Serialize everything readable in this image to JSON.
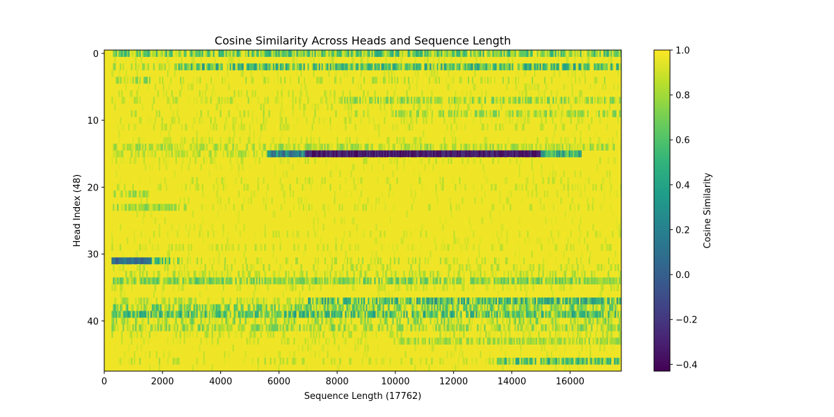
{
  "chart_data": {
    "type": "heatmap",
    "title": "Cosine Similarity Across Heads and Sequence Length",
    "xlabel": "Sequence Length (17762)",
    "ylabel": "Head Index (48)",
    "xlim": [
      0,
      17762
    ],
    "ylim": [
      47.5,
      -0.5
    ],
    "x_ticks": [
      0,
      2000,
      4000,
      6000,
      8000,
      10000,
      12000,
      14000,
      16000
    ],
    "x_tick_labels": [
      "0",
      "2000",
      "4000",
      "6000",
      "8000",
      "10000",
      "12000",
      "14000",
      "16000"
    ],
    "y_ticks": [
      0,
      10,
      20,
      30,
      40
    ],
    "y_tick_labels": [
      "0",
      "10",
      "20",
      "30",
      "40"
    ],
    "colormap": "viridis",
    "colorbar": {
      "label": "Cosine Similarity",
      "vmin": -0.43,
      "vmax": 1.0,
      "ticks": [
        1.0,
        0.8,
        0.6,
        0.4,
        0.2,
        0.0,
        -0.2,
        -0.4
      ],
      "tick_labels": [
        "1.0",
        "0.8",
        "0.6",
        "0.4",
        "0.2",
        "0.0",
        "−0.2",
        "−0.4"
      ]
    },
    "n_heads": 48,
    "seq_len": 17762,
    "default_value": 0.97,
    "leading_masked_columns": [
      0,
      250
    ],
    "rows": [
      {
        "head": 0,
        "segments": [
          {
            "x": [
              250,
              17762
            ],
            "mean": 0.68,
            "spread": 0.28,
            "density": 0.85
          }
        ]
      },
      {
        "head": 1,
        "segments": [
          {
            "x": [
              250,
              17762
            ],
            "mean": 0.92,
            "spread": 0.06,
            "density": 0.2
          }
        ]
      },
      {
        "head": 2,
        "segments": [
          {
            "x": [
              250,
              2400
            ],
            "mean": 0.85,
            "spread": 0.12,
            "density": 0.5
          },
          {
            "x": [
              2400,
              17762
            ],
            "mean": 0.6,
            "spread": 0.3,
            "density": 0.85
          }
        ]
      },
      {
        "head": 3,
        "segments": [
          {
            "x": [
              250,
              17762
            ],
            "mean": 0.92,
            "spread": 0.06,
            "density": 0.15
          }
        ]
      },
      {
        "head": 4,
        "segments": [
          {
            "x": [
              250,
              1600
            ],
            "mean": 0.78,
            "spread": 0.15,
            "density": 0.8
          },
          {
            "x": [
              1600,
              17762
            ],
            "mean": 0.88,
            "spread": 0.1,
            "density": 0.3
          }
        ]
      },
      {
        "head": 5,
        "segments": [
          {
            "x": [
              250,
              17762
            ],
            "mean": 0.92,
            "spread": 0.06,
            "density": 0.15
          }
        ]
      },
      {
        "head": 6,
        "segments": [
          {
            "x": [
              250,
              17762
            ],
            "mean": 0.9,
            "spread": 0.08,
            "density": 0.2
          }
        ]
      },
      {
        "head": 7,
        "segments": [
          {
            "x": [
              250,
              8000
            ],
            "mean": 0.88,
            "spread": 0.1,
            "density": 0.3
          },
          {
            "x": [
              8000,
              17762
            ],
            "mean": 0.78,
            "spread": 0.15,
            "density": 0.7
          }
        ]
      },
      {
        "head": 8,
        "segments": [
          {
            "x": [
              250,
              17762
            ],
            "mean": 0.9,
            "spread": 0.08,
            "density": 0.2
          }
        ]
      },
      {
        "head": 9,
        "segments": [
          {
            "x": [
              250,
              10000
            ],
            "mean": 0.88,
            "spread": 0.1,
            "density": 0.2
          },
          {
            "x": [
              10000,
              17762
            ],
            "mean": 0.8,
            "spread": 0.14,
            "density": 0.6
          }
        ]
      },
      {
        "head": 10,
        "segments": [
          {
            "x": [
              250,
              17762
            ],
            "mean": 0.9,
            "spread": 0.08,
            "density": 0.25
          }
        ]
      },
      {
        "head": 11,
        "segments": [
          {
            "x": [
              250,
              17762
            ],
            "mean": 0.9,
            "spread": 0.08,
            "density": 0.25
          }
        ]
      },
      {
        "head": 12,
        "segments": [
          {
            "x": [
              250,
              17762
            ],
            "mean": 0.93,
            "spread": 0.05,
            "density": 0.1
          }
        ]
      },
      {
        "head": 13,
        "segments": [
          {
            "x": [
              250,
              17762
            ],
            "mean": 0.9,
            "spread": 0.08,
            "density": 0.25
          }
        ]
      },
      {
        "head": 14,
        "segments": [
          {
            "x": [
              250,
              17762
            ],
            "mean": 0.82,
            "spread": 0.12,
            "density": 0.6
          }
        ]
      },
      {
        "head": 15,
        "segments": [
          {
            "x": [
              250,
              5600
            ],
            "mean": 0.85,
            "spread": 0.1,
            "density": 0.5
          },
          {
            "x": [
              5600,
              6900
            ],
            "mean": 0.25,
            "spread": 0.3,
            "density": 1.0
          },
          {
            "x": [
              6900,
              15000
            ],
            "mean": -0.32,
            "spread": 0.1,
            "density": 1.0
          },
          {
            "x": [
              15000,
              16400
            ],
            "mean": 0.45,
            "spread": 0.3,
            "density": 1.0
          }
        ]
      },
      {
        "head": 16,
        "segments": [
          {
            "x": [
              250,
              17762
            ],
            "mean": 0.9,
            "spread": 0.08,
            "density": 0.25
          }
        ]
      },
      {
        "head": 17,
        "segments": [
          {
            "x": [
              250,
              17762
            ],
            "mean": 0.93,
            "spread": 0.05,
            "density": 0.1
          }
        ]
      },
      {
        "head": 18,
        "segments": [
          {
            "x": [
              250,
              17762
            ],
            "mean": 0.93,
            "spread": 0.05,
            "density": 0.1
          }
        ]
      },
      {
        "head": 19,
        "segments": [
          {
            "x": [
              250,
              17762
            ],
            "mean": 0.9,
            "spread": 0.08,
            "density": 0.2
          }
        ]
      },
      {
        "head": 20,
        "segments": [
          {
            "x": [
              250,
              17762
            ],
            "mean": 0.9,
            "spread": 0.08,
            "density": 0.2
          }
        ]
      },
      {
        "head": 21,
        "segments": [
          {
            "x": [
              250,
              1500
            ],
            "mean": 0.8,
            "spread": 0.12,
            "density": 0.6
          },
          {
            "x": [
              1500,
              17762
            ],
            "mean": 0.92,
            "spread": 0.06,
            "density": 0.15
          }
        ]
      },
      {
        "head": 22,
        "segments": [
          {
            "x": [
              250,
              17762
            ],
            "mean": 0.92,
            "spread": 0.06,
            "density": 0.15
          }
        ]
      },
      {
        "head": 23,
        "segments": [
          {
            "x": [
              250,
              3000
            ],
            "mean": 0.8,
            "spread": 0.14,
            "density": 0.7
          },
          {
            "x": [
              3000,
              17762
            ],
            "mean": 0.9,
            "spread": 0.08,
            "density": 0.2
          }
        ]
      },
      {
        "head": 24,
        "segments": [
          {
            "x": [
              250,
              17762
            ],
            "mean": 0.93,
            "spread": 0.05,
            "density": 0.1
          }
        ]
      },
      {
        "head": 25,
        "segments": [
          {
            "x": [
              250,
              17762
            ],
            "mean": 0.93,
            "spread": 0.05,
            "density": 0.1
          }
        ]
      },
      {
        "head": 26,
        "segments": [
          {
            "x": [
              250,
              17762
            ],
            "mean": 0.93,
            "spread": 0.05,
            "density": 0.1
          }
        ]
      },
      {
        "head": 27,
        "segments": [
          {
            "x": [
              250,
              17762
            ],
            "mean": 0.91,
            "spread": 0.07,
            "density": 0.2
          }
        ]
      },
      {
        "head": 28,
        "segments": [
          {
            "x": [
              250,
              17762
            ],
            "mean": 0.93,
            "spread": 0.05,
            "density": 0.1
          }
        ]
      },
      {
        "head": 29,
        "segments": [
          {
            "x": [
              250,
              17762
            ],
            "mean": 0.9,
            "spread": 0.08,
            "density": 0.25
          }
        ]
      },
      {
        "head": 30,
        "segments": [
          {
            "x": [
              250,
              17762
            ],
            "mean": 0.92,
            "spread": 0.06,
            "density": 0.15
          }
        ]
      },
      {
        "head": 31,
        "segments": [
          {
            "x": [
              250,
              1600
            ],
            "mean": 0.05,
            "spread": 0.12,
            "density": 1.0
          },
          {
            "x": [
              1600,
              2600
            ],
            "mean": 0.6,
            "spread": 0.25,
            "density": 0.85
          },
          {
            "x": [
              2600,
              17762
            ],
            "mean": 0.88,
            "spread": 0.1,
            "density": 0.3
          }
        ]
      },
      {
        "head": 32,
        "segments": [
          {
            "x": [
              250,
              17762
            ],
            "mean": 0.88,
            "spread": 0.1,
            "density": 0.3
          }
        ]
      },
      {
        "head": 33,
        "segments": [
          {
            "x": [
              250,
              17762
            ],
            "mean": 0.85,
            "spread": 0.1,
            "density": 0.4
          }
        ]
      },
      {
        "head": 34,
        "segments": [
          {
            "x": [
              250,
              17762
            ],
            "mean": 0.72,
            "spread": 0.15,
            "density": 0.8
          }
        ]
      },
      {
        "head": 35,
        "segments": [
          {
            "x": [
              250,
              17762
            ],
            "mean": 0.9,
            "spread": 0.08,
            "density": 0.25
          }
        ]
      },
      {
        "head": 36,
        "segments": [
          {
            "x": [
              250,
              17762
            ],
            "mean": 0.93,
            "spread": 0.05,
            "density": 0.1
          }
        ]
      },
      {
        "head": 37,
        "segments": [
          {
            "x": [
              250,
              7000
            ],
            "mean": 0.85,
            "spread": 0.12,
            "density": 0.4
          },
          {
            "x": [
              7000,
              17762
            ],
            "mean": 0.55,
            "spread": 0.3,
            "density": 0.85
          }
        ]
      },
      {
        "head": 38,
        "segments": [
          {
            "x": [
              250,
              17762
            ],
            "mean": 0.72,
            "spread": 0.2,
            "density": 0.7
          }
        ]
      },
      {
        "head": 39,
        "segments": [
          {
            "x": [
              250,
              17762
            ],
            "mean": 0.6,
            "spread": 0.28,
            "density": 0.85
          }
        ]
      },
      {
        "head": 40,
        "segments": [
          {
            "x": [
              250,
              17762
            ],
            "mean": 0.8,
            "spread": 0.15,
            "density": 0.5
          }
        ]
      },
      {
        "head": 41,
        "segments": [
          {
            "x": [
              250,
              17762
            ],
            "mean": 0.78,
            "spread": 0.15,
            "density": 0.6
          }
        ]
      },
      {
        "head": 42,
        "segments": [
          {
            "x": [
              250,
              17762
            ],
            "mean": 0.88,
            "spread": 0.1,
            "density": 0.3
          }
        ]
      },
      {
        "head": 43,
        "segments": [
          {
            "x": [
              250,
              10000
            ],
            "mean": 0.9,
            "spread": 0.08,
            "density": 0.2
          },
          {
            "x": [
              10000,
              17762
            ],
            "mean": 0.8,
            "spread": 0.1,
            "density": 0.7
          }
        ]
      },
      {
        "head": 44,
        "segments": [
          {
            "x": [
              250,
              17762
            ],
            "mean": 0.92,
            "spread": 0.06,
            "density": 0.15
          }
        ]
      },
      {
        "head": 45,
        "segments": [
          {
            "x": [
              250,
              17762
            ],
            "mean": 0.92,
            "spread": 0.06,
            "density": 0.15
          }
        ]
      },
      {
        "head": 46,
        "segments": [
          {
            "x": [
              250,
              13500
            ],
            "mean": 0.88,
            "spread": 0.1,
            "density": 0.25
          },
          {
            "x": [
              13500,
              17762
            ],
            "mean": 0.6,
            "spread": 0.25,
            "density": 0.85
          }
        ]
      },
      {
        "head": 47,
        "segments": [
          {
            "x": [
              250,
              17762
            ],
            "mean": 0.93,
            "spread": 0.05,
            "density": 0.1
          }
        ]
      }
    ]
  }
}
